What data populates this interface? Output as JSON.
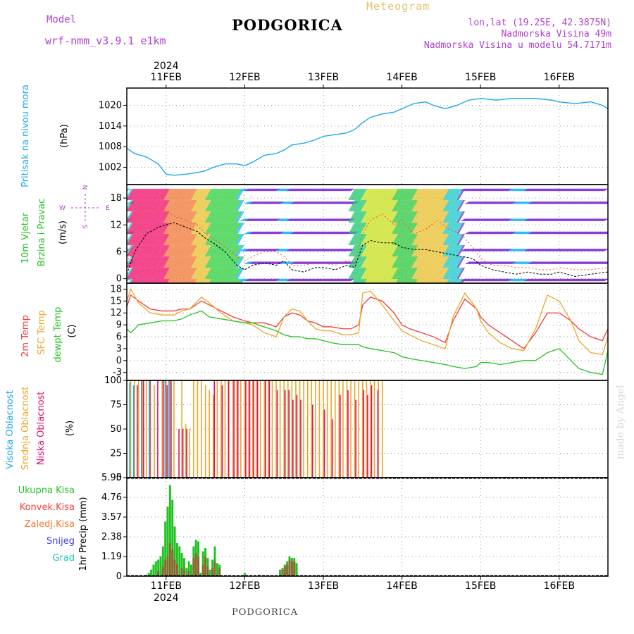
{
  "header": {
    "model_label": "Model",
    "model_name": "wrf-nmm_v3.9.1  e1km",
    "title": "PODGORICA",
    "meteogram": "Meteogram",
    "coords": "lon,lat (19.25E, 42.3875N)",
    "altitude": "Nadmorska Visina 49m",
    "model_altitude": "Nadmorska Visina u modelu 54.7171m"
  },
  "footer": {
    "station": "PODGORICA",
    "credit": "made by Angel"
  },
  "colors": {
    "pressure": "#20a8f0",
    "temp2m": "#f03c3c",
    "sfc_temp": "#e8a828",
    "dewpoint": "#22c322",
    "high_cloud": "#20a8f0",
    "mid_cloud": "#e8a828",
    "low_cloud": "#e0106a",
    "total_precip": "#22c322",
    "convective_precip": "#f03c3c",
    "frozen_precip": "#f07830",
    "snow": "#4040f0",
    "graupel": "#20c8b0"
  },
  "chart_data": [
    {
      "id": "axis",
      "type": "table",
      "year": "2024",
      "day_ticks": [
        "11FEB",
        "12FEB",
        "13FEB",
        "14FEB",
        "15FEB",
        "16FEB"
      ],
      "time_range_days_from_10feb_00z": [
        0.5,
        6.62
      ]
    },
    {
      "id": "pressure",
      "type": "line",
      "ylabel_main": "Pritisak na nivou mora",
      "unit": "(hPa)",
      "yticks": [
        1002,
        1008,
        1014,
        1020
      ],
      "ylim": [
        997,
        1025
      ],
      "x_day": [
        0.5,
        0.6,
        0.75,
        0.9,
        1.0,
        1.1,
        1.25,
        1.4,
        1.5,
        1.6,
        1.75,
        1.9,
        2.0,
        2.1,
        2.25,
        2.4,
        2.5,
        2.6,
        2.75,
        2.9,
        3.0,
        3.15,
        3.3,
        3.4,
        3.5,
        3.6,
        3.75,
        3.9,
        4.0,
        4.15,
        4.3,
        4.4,
        4.55,
        4.7,
        4.85,
        5.0,
        5.2,
        5.4,
        5.5,
        5.7,
        5.9,
        6.0,
        6.2,
        6.4,
        6.55,
        6.62
      ],
      "values": [
        1007.5,
        1006,
        1005,
        1003,
        1000,
        999.7,
        1000,
        1000.5,
        1001,
        1002,
        1003,
        1003,
        1002.5,
        1003.5,
        1005.5,
        1006,
        1007,
        1008.5,
        1009,
        1010,
        1011,
        1011.5,
        1012,
        1013,
        1015,
        1016.5,
        1017.5,
        1018,
        1019,
        1020.5,
        1021,
        1020,
        1019,
        1020,
        1021.5,
        1022,
        1021.5,
        1022,
        1022,
        1022,
        1021.5,
        1021,
        1020.5,
        1021,
        1020,
        1019
      ]
    },
    {
      "id": "wind",
      "type": "line",
      "ylabel_main": "10m Vjetar",
      "ylabel_sub": "Brzina i Pravac",
      "unit": "(m/s)",
      "compass": {
        "north": "N",
        "south": "S",
        "east": "E",
        "west": "W"
      },
      "yticks": [
        0,
        6,
        12,
        18
      ],
      "ylim": [
        -1,
        21
      ],
      "x_day": [
        0.5,
        0.6,
        0.75,
        0.9,
        1.0,
        1.1,
        1.25,
        1.4,
        1.5,
        1.6,
        1.75,
        1.9,
        2.0,
        2.1,
        2.25,
        2.4,
        2.5,
        2.6,
        2.75,
        2.9,
        3.0,
        3.15,
        3.3,
        3.4,
        3.5,
        3.6,
        3.75,
        3.9,
        4.0,
        4.15,
        4.3,
        4.45,
        4.6,
        4.75,
        4.9,
        5.0,
        5.15,
        5.3,
        5.45,
        5.6,
        5.75,
        5.9,
        6.0,
        6.2,
        6.4,
        6.62
      ],
      "speed": [
        1,
        6,
        10,
        11.5,
        12,
        12.5,
        11.5,
        10.5,
        9,
        8,
        6,
        3,
        2,
        3,
        3.5,
        3,
        4,
        2,
        1.5,
        2.5,
        2.5,
        2,
        3,
        2.5,
        7.5,
        8.5,
        8,
        8,
        7,
        6.5,
        6.5,
        6,
        5.5,
        5,
        4.5,
        3,
        2,
        1.5,
        1,
        1.5,
        1,
        1,
        1.5,
        0.5,
        1,
        1.5
      ],
      "gust": [
        2,
        14,
        16,
        15,
        15,
        14,
        13,
        12,
        10,
        9,
        7,
        5,
        4,
        5,
        6,
        6,
        5,
        3,
        3,
        3.5,
        3.5,
        3,
        4,
        4,
        10,
        13,
        14.5,
        12,
        13,
        10,
        11,
        13,
        11,
        10,
        7,
        4.5,
        3,
        3,
        2.5,
        2.5,
        2,
        2,
        2.5,
        2,
        2,
        2.5
      ]
    },
    {
      "id": "temperature",
      "type": "line",
      "ylabel_main": [
        "2m Temp",
        "SFC Temp",
        "dewpt Temp"
      ],
      "unit": "(C)",
      "yticks": [
        -3,
        0,
        3,
        6,
        9,
        12,
        15,
        18
      ],
      "ylim": [
        -5,
        19.5
      ],
      "series": [
        {
          "name": "2m Temp",
          "x_day": [
            0.5,
            0.55,
            0.65,
            0.8,
            0.95,
            1.1,
            1.2,
            1.3,
            1.45,
            1.55,
            1.7,
            1.85,
            2.0,
            2.1,
            2.25,
            2.4,
            2.5,
            2.6,
            2.7,
            2.8,
            2.9,
            3.0,
            3.1,
            3.25,
            3.35,
            3.45,
            3.5,
            3.6,
            3.75,
            3.9,
            4.0,
            4.1,
            4.25,
            4.4,
            4.55,
            4.65,
            4.8,
            4.95,
            5.0,
            5.1,
            5.25,
            5.4,
            5.55,
            5.7,
            5.85,
            6.0,
            6.15,
            6.25,
            6.4,
            6.55,
            6.62
          ],
          "values": [
            13.5,
            16.5,
            15,
            13,
            12.5,
            12.5,
            13,
            13,
            15,
            14,
            12.5,
            11,
            10,
            9.5,
            9.5,
            8.5,
            11,
            12,
            11.5,
            10,
            9.5,
            8.5,
            8.5,
            8,
            8,
            9,
            14,
            16,
            15,
            12,
            9,
            8,
            7,
            6,
            4.5,
            10,
            15.5,
            13,
            11,
            9,
            7,
            5,
            3,
            7,
            12,
            12,
            10,
            8,
            6,
            5,
            8
          ]
        },
        {
          "name": "SFC Temp",
          "x_day": [
            0.5,
            0.55,
            0.65,
            0.8,
            0.95,
            1.1,
            1.2,
            1.3,
            1.45,
            1.55,
            1.7,
            1.85,
            2.0,
            2.1,
            2.25,
            2.4,
            2.5,
            2.6,
            2.7,
            2.8,
            2.9,
            3.0,
            3.1,
            3.25,
            3.35,
            3.45,
            3.5,
            3.6,
            3.75,
            3.9,
            4.0,
            4.1,
            4.25,
            4.4,
            4.55,
            4.65,
            4.8,
            4.95,
            5.0,
            5.1,
            5.25,
            5.4,
            5.55,
            5.7,
            5.85,
            6.0,
            6.15,
            6.25,
            6.4,
            6.55,
            6.62
          ],
          "values": [
            15,
            18,
            14.5,
            12,
            11.5,
            11.5,
            12.5,
            13,
            16,
            14.5,
            12,
            10,
            9.5,
            9,
            7,
            6,
            11,
            13,
            12.5,
            10,
            8,
            7.5,
            7.5,
            6.5,
            6.5,
            7,
            17,
            17.5,
            14,
            10,
            7.5,
            6.5,
            5,
            4,
            3,
            11,
            17,
            13,
            10,
            7,
            4.5,
            3,
            2.5,
            8,
            16.5,
            15,
            10,
            5,
            2,
            1.5,
            6
          ]
        },
        {
          "name": "dewpt Temp",
          "x_day": [
            0.5,
            0.55,
            0.65,
            0.8,
            0.95,
            1.1,
            1.2,
            1.3,
            1.45,
            1.55,
            1.7,
            1.85,
            2.0,
            2.1,
            2.25,
            2.4,
            2.5,
            2.6,
            2.7,
            2.8,
            2.9,
            3.0,
            3.1,
            3.25,
            3.35,
            3.45,
            3.5,
            3.6,
            3.75,
            3.9,
            4.0,
            4.1,
            4.25,
            4.4,
            4.55,
            4.65,
            4.8,
            4.95,
            5.0,
            5.1,
            5.25,
            5.4,
            5.55,
            5.7,
            5.85,
            6.0,
            6.15,
            6.25,
            6.4,
            6.55,
            6.62
          ],
          "values": [
            8,
            7,
            9,
            9.5,
            10,
            10,
            10.5,
            11.5,
            12.5,
            11,
            10.5,
            10,
            9.5,
            9.5,
            8.5,
            7.5,
            6.5,
            6,
            6,
            5.5,
            5.5,
            5,
            4.5,
            4,
            4,
            4,
            3.5,
            3,
            2.5,
            2,
            1,
            0.5,
            0,
            -0.5,
            -1,
            -1.5,
            -2,
            -1.5,
            -0.5,
            -0.5,
            -1,
            -0.5,
            0,
            0,
            2,
            3,
            0,
            -2,
            -3,
            -3.5,
            2.5
          ]
        }
      ]
    },
    {
      "id": "cloud",
      "type": "bar",
      "ylabel_main": [
        "Visoka Oblacnost",
        "Srednja Oblacnost",
        "Niska Oblacnost"
      ],
      "unit": "(%)",
      "yticks": [
        0,
        25,
        50,
        75,
        100
      ],
      "ylim": [
        0,
        100
      ],
      "series": [
        {
          "name": "Srednja Oblacnost",
          "x_day": [
            0.55,
            0.6,
            0.65,
            0.7,
            0.75,
            0.8,
            0.85,
            0.95,
            1.0,
            1.05,
            1.1,
            1.2,
            1.25,
            1.3,
            1.35,
            1.4,
            1.45,
            1.5,
            1.55,
            1.6,
            1.65,
            1.7,
            1.75,
            1.8,
            1.85,
            1.9,
            1.95,
            2.0,
            2.05,
            2.1,
            2.15,
            2.2,
            2.25,
            2.3,
            2.35,
            2.4,
            2.45,
            2.5,
            2.55,
            2.6,
            2.65,
            2.7,
            2.75,
            2.8,
            2.85,
            2.9,
            2.95,
            3.0,
            3.05,
            3.1,
            3.15,
            3.2,
            3.25,
            3.3,
            3.35,
            3.4,
            3.45,
            3.5,
            3.55,
            3.6,
            3.65,
            3.7,
            3.75
          ],
          "values": [
            100,
            100,
            100,
            100,
            100,
            100,
            95,
            100,
            100,
            100,
            100,
            100,
            55,
            50,
            100,
            100,
            100,
            95,
            90,
            85,
            100,
            100,
            100,
            100,
            100,
            100,
            100,
            100,
            100,
            100,
            100,
            100,
            100,
            100,
            100,
            100,
            100,
            100,
            100,
            100,
            100,
            100,
            100,
            100,
            100,
            100,
            100,
            100,
            100,
            100,
            100,
            100,
            100,
            100,
            100,
            100,
            100,
            100,
            100,
            100,
            100,
            100,
            100
          ]
        },
        {
          "name": "Niska Oblacnost",
          "x_day": [
            0.62,
            0.7,
            0.78,
            0.88,
            0.95,
            1.0,
            1.05,
            1.15,
            1.2,
            1.25,
            1.6,
            1.7,
            1.78,
            1.85,
            1.9,
            2.0,
            2.05,
            2.1,
            2.15,
            2.25,
            2.3,
            2.4,
            2.5,
            2.55,
            2.6,
            2.65,
            2.7,
            2.85,
            3.0,
            3.1,
            3.2,
            3.3,
            3.4,
            3.5,
            3.55,
            3.6,
            3.68
          ],
          "values": [
            95,
            100,
            100,
            100,
            100,
            95,
            100,
            50,
            50,
            50,
            100,
            95,
            100,
            100,
            100,
            100,
            100,
            100,
            100,
            100,
            100,
            90,
            90,
            90,
            80,
            85,
            80,
            75,
            70,
            60,
            85,
            90,
            80,
            90,
            85,
            95,
            90
          ]
        },
        {
          "name": "Visoka Oblacnost",
          "x_day": [
            0.55,
            0.6,
            0.7,
            0.8,
            1.0,
            1.05
          ],
          "values": [
            98,
            95,
            100,
            100,
            100,
            100
          ]
        }
      ]
    },
    {
      "id": "precip",
      "type": "bar",
      "ylabel_main": "1hr Precip",
      "unit": "(mm)",
      "yticks": [
        "0",
        "1.19",
        "2.38",
        "3.57",
        "4.76",
        "5.95"
      ],
      "ylim": [
        0,
        5.95
      ],
      "legend": [
        "Ukupna Kisa",
        "Konvek.Kisa",
        "Zaledj.Kisa",
        "Snijeg",
        "Grad"
      ],
      "series": [
        {
          "name": "Ukupna Kisa",
          "x_day": [
            0.75,
            0.78,
            0.81,
            0.84,
            0.87,
            0.9,
            0.93,
            0.96,
            0.99,
            1.02,
            1.05,
            1.08,
            1.11,
            1.14,
            1.17,
            1.2,
            1.23,
            1.26,
            1.29,
            1.32,
            1.35,
            1.38,
            1.41,
            1.44,
            1.47,
            1.5,
            1.53,
            1.56,
            1.59,
            1.62,
            1.65,
            1.68,
            2.0,
            2.18,
            2.45,
            2.48,
            2.51,
            2.54,
            2.57,
            2.6,
            2.63,
            2.66
          ],
          "values": [
            0.1,
            0.2,
            0.4,
            0.7,
            0.9,
            1.0,
            1.2,
            1.8,
            3.3,
            4.2,
            5.5,
            4.6,
            3.0,
            2.0,
            1.8,
            1.4,
            1.1,
            0.5,
            0.9,
            0.7,
            1.8,
            2.2,
            2.1,
            0.2,
            1.5,
            1.7,
            1.1,
            0.4,
            1.0,
            1.8,
            0.8,
            0.7,
            0.2,
            0.1,
            0.4,
            0.5,
            0.7,
            0.9,
            1.2,
            1.1,
            1.1,
            0.8
          ]
        },
        {
          "name": "Konvek.Kisa",
          "x_day": [
            0.9,
            0.96,
            0.99,
            1.02,
            1.05,
            1.08,
            1.11,
            1.14,
            1.2,
            1.23,
            1.29,
            1.35,
            1.38,
            1.41,
            1.47,
            1.5,
            1.53,
            1.59,
            1.62,
            1.68,
            2.48,
            2.51,
            2.54,
            2.57,
            2.6,
            2.63
          ],
          "values": [
            0.3,
            0.6,
            1.0,
            1.2,
            2.0,
            1.6,
            1.0,
            0.7,
            0.5,
            0.4,
            0.3,
            1.1,
            1.4,
            1.2,
            0.7,
            1.2,
            0.6,
            0.5,
            0.9,
            0.5,
            0.4,
            0.6,
            0.7,
            1.0,
            0.9,
            0.9
          ]
        }
      ]
    }
  ]
}
